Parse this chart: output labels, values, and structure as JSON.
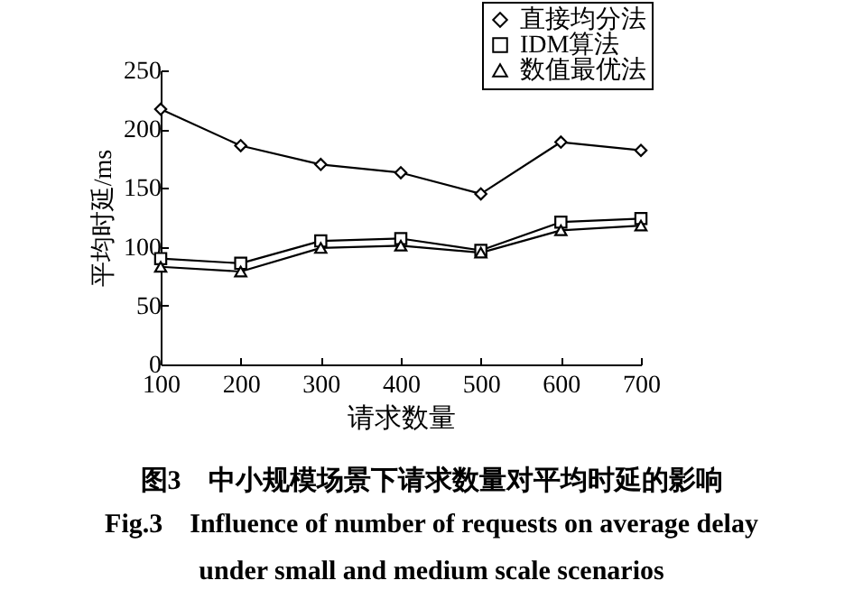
{
  "chart_data": {
    "type": "line",
    "title": "图3　中小规模场景下请求数量对平均时延的影响",
    "subtitle": "Fig.3　Influence of number of requests on average delay under small and medium scale scenarios",
    "xlabel": "请求数量",
    "ylabel": "平均时延/ms",
    "x": [
      100,
      200,
      300,
      400,
      500,
      600,
      700
    ],
    "series": [
      {
        "name": "直接均分法",
        "color": "#000000",
        "marker": "diamond",
        "values": [
          217,
          186,
          170,
          163,
          145,
          189,
          182
        ]
      },
      {
        "name": "IDM算法",
        "color": "#000000",
        "marker": "square",
        "values": [
          90,
          86,
          105,
          107,
          97,
          121,
          124
        ]
      },
      {
        "name": "数值最优法",
        "color": "#000000",
        "marker": "triangle",
        "values": [
          83,
          79,
          99,
          101,
          95,
          114,
          118
        ]
      }
    ],
    "xlim": [
      100,
      700
    ],
    "xticks": [
      100,
      200,
      300,
      400,
      500,
      600,
      700
    ],
    "ylim": [
      0,
      250
    ],
    "yticks": [
      0,
      50,
      100,
      150,
      200,
      250
    ],
    "grid": false,
    "legend": "top right",
    "line_style": "solid"
  }
}
